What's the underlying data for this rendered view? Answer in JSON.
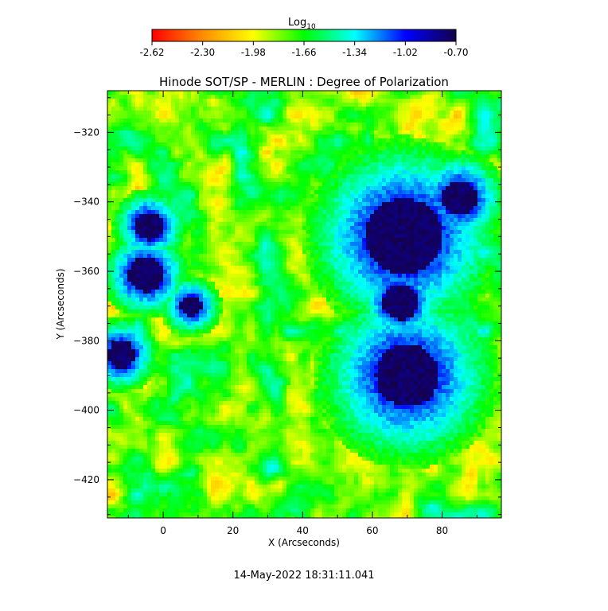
{
  "chart_data": {
    "type": "heatmap",
    "title": "Hinode SOT/SP - MERLIN : Degree of Polarization",
    "xlabel": "X (Arcseconds)",
    "ylabel": "Y (Arcseconds)",
    "xlim": [
      -16,
      97
    ],
    "ylim": [
      -431,
      -308
    ],
    "x_ticks": [
      0,
      20,
      40,
      60,
      80
    ],
    "y_ticks": [
      -320,
      -340,
      -360,
      -380,
      -400,
      -420
    ],
    "colorbar": {
      "label_base": "Log",
      "label_sub": "10",
      "range": [
        -2.62,
        -0.7
      ],
      "ticks": [
        "-2.62",
        "-2.30",
        "-1.98",
        "-1.66",
        "-1.34",
        "-1.02",
        "-0.70"
      ],
      "colors": [
        "#ff0000",
        "#ff8c00",
        "#ffff00",
        "#00ff00",
        "#00ffff",
        "#0000ff",
        "#14004a"
      ]
    },
    "features": [
      {
        "name": "sunspot-main",
        "x": 70,
        "y": -390,
        "r": 9,
        "penumbra": 18
      },
      {
        "name": "sunspot-upper",
        "x": 69,
        "y": -350,
        "r": 11,
        "penumbra": 18
      },
      {
        "name": "pore-right",
        "x": 85,
        "y": -339,
        "r": 5,
        "penumbra": 9
      },
      {
        "name": "pore-middle",
        "x": 68,
        "y": -369,
        "r": 5,
        "penumbra": 7
      },
      {
        "name": "pore-left-1",
        "x": -5,
        "y": -361,
        "r": 5,
        "penumbra": 8
      },
      {
        "name": "pore-left-2",
        "x": -12,
        "y": -384,
        "r": 4,
        "penumbra": 7
      },
      {
        "name": "pore-left-3",
        "x": -4,
        "y": -347,
        "r": 4,
        "penumbra": 7
      },
      {
        "name": "pore-left-4",
        "x": 8,
        "y": -370,
        "r": 3,
        "penumbra": 6
      }
    ],
    "timestamp": "14-May-2022 18:31:11.041"
  }
}
